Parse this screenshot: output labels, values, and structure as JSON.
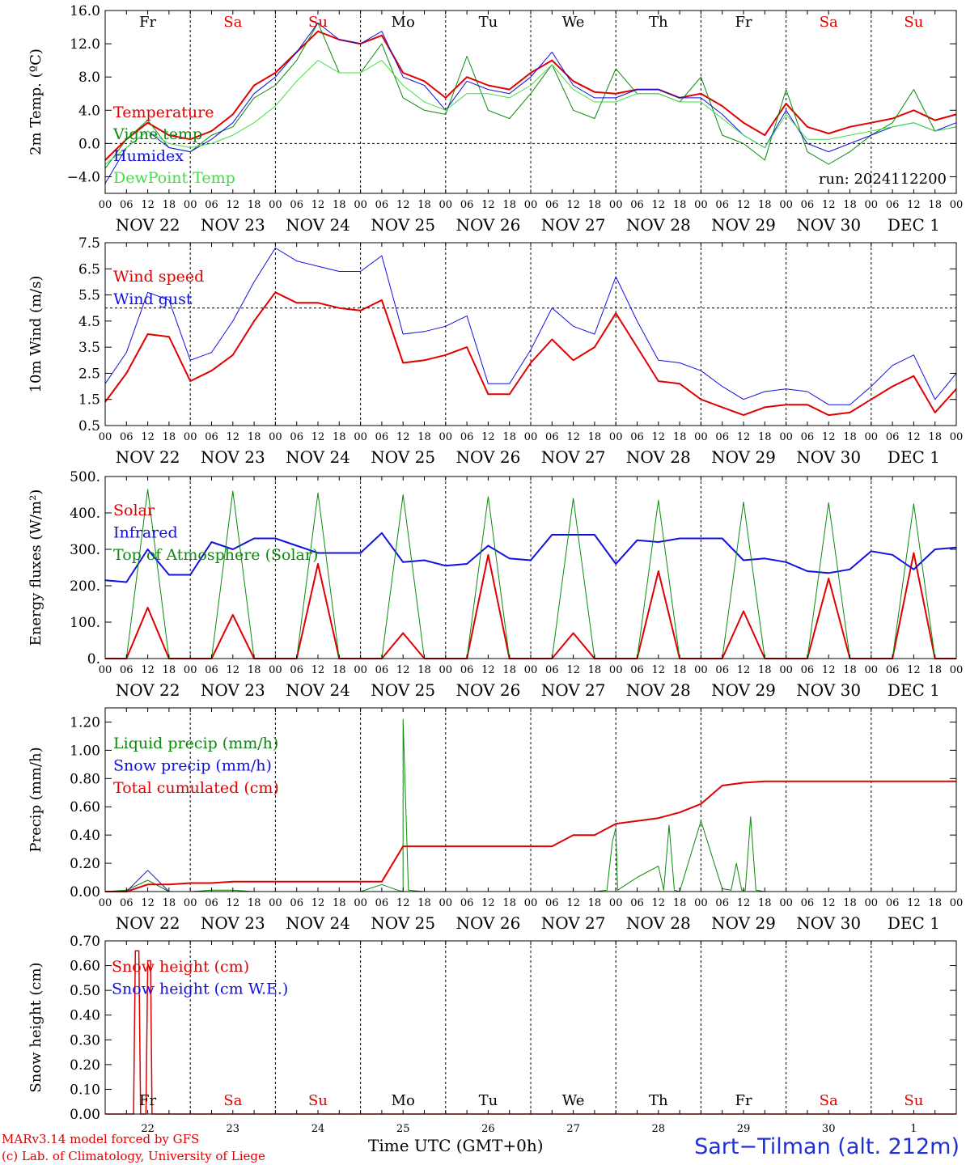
{
  "meta": {
    "run_label": "run: 2024112200"
  },
  "days": {
    "weekday_labels": [
      "Fr",
      "Sa",
      "Su",
      "Mo",
      "Tu",
      "We",
      "Th",
      "Fr",
      "Sa",
      "Su"
    ],
    "weekday_colors": [
      "#000000",
      "#e00000",
      "#e00000",
      "#000000",
      "#000000",
      "#000000",
      "#000000",
      "#000000",
      "#e00000",
      "#e00000"
    ],
    "date_labels": [
      "NOV 22",
      "NOV 23",
      "NOV 24",
      "NOV 25",
      "NOV 26",
      "NOV 27",
      "NOV 28",
      "NOV 29",
      "NOV 30",
      "DEC  1"
    ],
    "hour_ticks": [
      "00",
      "06",
      "12",
      "18"
    ],
    "last_hour_tick": "00",
    "snow_panel_day_numbers": [
      "22",
      "23",
      "24",
      "25",
      "26",
      "27",
      "28",
      "29",
      "30",
      "1"
    ]
  },
  "footer": {
    "line1": "MARv3.14 model forced by GFS",
    "line2": "(c) Lab. of Climatology, University of Liege",
    "time_axis": "Time UTC (GMT+0h)",
    "station": "Sart−Tilman (alt. 212m)"
  },
  "chart_data": [
    {
      "id": "temperature",
      "type": "line",
      "ylabel": "2m Temp. (ºC)",
      "ylim": [
        -6,
        16
      ],
      "yticks": [
        -4,
        0,
        4,
        8,
        12,
        16
      ],
      "ytick_labels": [
        "−4.0",
        "0.0",
        "4.0",
        "8.0",
        "12.0",
        "16.0"
      ],
      "reference_line": 0,
      "x_hours": [
        0,
        6,
        12,
        18,
        24,
        30,
        36,
        42,
        48,
        54,
        60,
        66,
        72,
        78,
        84,
        90,
        96,
        102,
        108,
        114,
        120,
        126,
        132,
        138,
        144,
        150,
        156,
        162,
        168,
        174,
        180,
        186,
        192,
        198,
        204,
        210,
        216,
        222,
        228,
        234,
        240
      ],
      "series": [
        {
          "name": "Temperature",
          "color": "#e00000",
          "width": 2,
          "values": [
            -2.0,
            0.5,
            2.5,
            1.0,
            0.5,
            1.5,
            3.5,
            7.0,
            8.5,
            11.0,
            13.5,
            12.5,
            12.0,
            13.0,
            8.5,
            7.5,
            5.5,
            8.0,
            7.0,
            6.5,
            8.5,
            10.0,
            7.5,
            6.2,
            6.0,
            6.5,
            6.5,
            5.5,
            6.0,
            4.5,
            2.5,
            1.0,
            4.8,
            2.0,
            1.2,
            2.0,
            2.5,
            3.0,
            4.0,
            2.8,
            3.5
          ]
        },
        {
          "name": "Vigne temp",
          "color": "#0a8a0a",
          "width": 1,
          "values": [
            -3.0,
            0.5,
            2.8,
            -0.5,
            -1.0,
            1.0,
            2.0,
            5.5,
            7.0,
            10.0,
            14.5,
            8.5,
            8.5,
            12.0,
            5.5,
            4.0,
            3.5,
            10.5,
            4.0,
            3.0,
            6.0,
            9.5,
            4.0,
            3.0,
            9.0,
            6.0,
            6.0,
            5.0,
            8.0,
            1.0,
            0.0,
            -2.0,
            6.5,
            -1.0,
            -2.5,
            -1.0,
            1.0,
            2.5,
            6.5,
            1.5,
            2.0
          ]
        },
        {
          "name": "Humidex",
          "color": "#1010e0",
          "width": 1,
          "values": [
            -4.8,
            -0.5,
            1.5,
            -0.5,
            -1.0,
            0.5,
            2.5,
            6.0,
            8.0,
            11.0,
            14.5,
            12.5,
            12.0,
            13.5,
            8.0,
            7.0,
            4.0,
            7.5,
            6.5,
            6.0,
            8.0,
            11.0,
            7.0,
            5.5,
            5.5,
            6.5,
            6.5,
            5.5,
            5.5,
            3.5,
            1.0,
            -0.5,
            4.0,
            0.0,
            -1.0,
            0.0,
            1.0,
            2.0,
            2.5,
            1.5,
            2.5
          ]
        },
        {
          "name": "DewPoint Temp",
          "color": "#40e040",
          "width": 1,
          "values": [
            -2.5,
            -0.5,
            1.5,
            0.0,
            -0.5,
            0.0,
            1.0,
            2.5,
            4.5,
            7.5,
            10.0,
            8.5,
            8.5,
            10.0,
            7.0,
            5.0,
            4.0,
            6.0,
            6.0,
            5.5,
            7.0,
            9.5,
            6.5,
            5.0,
            5.0,
            6.0,
            6.0,
            5.0,
            5.0,
            3.0,
            1.0,
            -0.5,
            3.5,
            0.5,
            0.5,
            1.0,
            1.5,
            2.0,
            2.5,
            1.5,
            2.0
          ]
        }
      ]
    },
    {
      "id": "wind",
      "type": "line",
      "ylabel": "10m Wind (m/s)",
      "ylim": [
        0.5,
        7.5
      ],
      "yticks": [
        0.5,
        1.5,
        2.5,
        3.5,
        4.5,
        5.5,
        6.5,
        7.5
      ],
      "ytick_labels": [
        "0.5",
        "1.5",
        "2.5",
        "3.5",
        "4.5",
        "5.5",
        "6.5",
        "7.5"
      ],
      "reference_line": 5,
      "x_hours": [
        0,
        6,
        12,
        18,
        24,
        30,
        36,
        42,
        48,
        54,
        60,
        66,
        72,
        78,
        84,
        90,
        96,
        102,
        108,
        114,
        120,
        126,
        132,
        138,
        144,
        150,
        156,
        162,
        168,
        174,
        180,
        186,
        192,
        198,
        204,
        210,
        216,
        222,
        228,
        234,
        240
      ],
      "series": [
        {
          "name": "Wind speed",
          "color": "#e00000",
          "width": 2,
          "values": [
            1.4,
            2.5,
            4.0,
            3.9,
            2.2,
            2.6,
            3.2,
            4.5,
            5.6,
            5.2,
            5.2,
            5.0,
            4.9,
            5.3,
            2.9,
            3.0,
            3.2,
            3.5,
            1.7,
            1.7,
            2.9,
            3.8,
            3.0,
            3.5,
            4.8,
            3.5,
            2.2,
            2.1,
            1.5,
            1.2,
            0.9,
            1.2,
            1.3,
            1.3,
            0.9,
            1.0,
            1.5,
            2.0,
            2.4,
            1.0,
            1.9
          ]
        },
        {
          "name": "Wind gust",
          "color": "#1010e0",
          "width": 1,
          "values": [
            2.1,
            3.3,
            5.6,
            5.3,
            3.0,
            3.3,
            4.5,
            6.0,
            7.3,
            6.8,
            6.6,
            6.4,
            6.4,
            7.0,
            4.0,
            4.1,
            4.3,
            4.7,
            2.1,
            2.1,
            3.4,
            5.0,
            4.3,
            4.0,
            6.2,
            4.5,
            3.0,
            2.9,
            2.6,
            2.0,
            1.5,
            1.8,
            1.9,
            1.8,
            1.3,
            1.3,
            2.0,
            2.8,
            3.2,
            1.5,
            2.5
          ]
        }
      ]
    },
    {
      "id": "energy",
      "type": "line",
      "ylabel": "Energy fluxes (W/m²)",
      "ylim": [
        0,
        500
      ],
      "yticks": [
        0,
        100,
        200,
        300,
        400,
        500
      ],
      "ytick_labels": [
        "0.",
        "100.",
        "200.",
        "300.",
        "400.",
        "500."
      ],
      "x_hours": [
        0,
        6,
        12,
        18,
        24,
        30,
        36,
        42,
        48,
        54,
        60,
        66,
        72,
        78,
        84,
        90,
        96,
        102,
        108,
        114,
        120,
        126,
        132,
        138,
        144,
        150,
        156,
        162,
        168,
        174,
        180,
        186,
        192,
        198,
        204,
        210,
        216,
        222,
        228,
        234,
        240
      ],
      "series": [
        {
          "name": "Solar",
          "color": "#e00000",
          "width": 2,
          "values": [
            0,
            0,
            140,
            0,
            0,
            0,
            120,
            0,
            0,
            0,
            260,
            0,
            0,
            0,
            70,
            0,
            0,
            0,
            285,
            0,
            0,
            0,
            70,
            0,
            0,
            0,
            240,
            0,
            0,
            0,
            130,
            0,
            0,
            0,
            220,
            0,
            0,
            0,
            290,
            0,
            0
          ]
        },
        {
          "name": "Infrared",
          "color": "#1010e0",
          "width": 2,
          "values": [
            215,
            210,
            300,
            230,
            230,
            320,
            300,
            330,
            330,
            310,
            290,
            290,
            290,
            345,
            265,
            270,
            255,
            260,
            310,
            275,
            270,
            340,
            340,
            340,
            260,
            325,
            320,
            330,
            330,
            330,
            270,
            275,
            265,
            240,
            235,
            245,
            295,
            285,
            245,
            300,
            305
          ]
        },
        {
          "name": "Top of Atmosphere (Solar)",
          "color": "#0a8a0a",
          "width": 1,
          "values": [
            0,
            0,
            465,
            0,
            0,
            0,
            460,
            0,
            0,
            0,
            455,
            0,
            0,
            0,
            450,
            0,
            0,
            0,
            445,
            0,
            0,
            0,
            440,
            0,
            0,
            0,
            435,
            0,
            0,
            0,
            430,
            0,
            0,
            0,
            428,
            0,
            0,
            0,
            425,
            0,
            0
          ]
        }
      ]
    },
    {
      "id": "precip",
      "type": "line",
      "ylabel": "Precip (mm/h)",
      "ylim": [
        0,
        1.3
      ],
      "yticks": [
        0,
        0.2,
        0.4,
        0.6,
        0.8,
        1.0,
        1.2
      ],
      "ytick_labels": [
        "0.00",
        "0.20",
        "0.40",
        "0.60",
        "0.80",
        "1.00",
        "1.20"
      ],
      "x_hours": [
        0,
        6,
        12,
        18,
        24,
        30,
        36,
        42,
        48,
        54,
        60,
        66,
        72,
        78,
        84,
        90,
        96,
        102,
        108,
        114,
        120,
        126,
        132,
        138,
        144,
        150,
        156,
        162,
        168,
        174,
        180,
        186,
        192,
        198,
        204,
        210,
        216,
        222,
        228,
        234,
        240
      ],
      "series": [
        {
          "name": "Liquid precip (mm/h)",
          "color": "#0a8a0a",
          "width": 1,
          "values": [
            0,
            0.01,
            0.08,
            0,
            0,
            0.01,
            0.01,
            0,
            0,
            0,
            0,
            0,
            0,
            0.05,
            0,
            0,
            0,
            0,
            0,
            0,
            0,
            0,
            0,
            0,
            0.45,
            0.1,
            0.18,
            0,
            0.5,
            0.02,
            0.01,
            0,
            0,
            0,
            0,
            0,
            0,
            0,
            0,
            0,
            0
          ]
        },
        {
          "name": "Snow precip (mm/h)",
          "color": "#1010e0",
          "width": 1,
          "values": [
            0,
            0,
            0.15,
            0,
            0,
            0,
            0,
            0,
            0,
            0,
            0,
            0,
            0,
            0,
            0,
            0,
            0,
            0,
            0,
            0,
            0,
            0,
            0,
            0,
            0,
            0,
            0,
            0,
            0,
            0,
            0,
            0,
            0,
            0,
            0,
            0,
            0,
            0,
            0,
            0,
            0
          ]
        },
        {
          "name": "Total cumulated (cm)",
          "color": "#e00000",
          "width": 2,
          "values": [
            0,
            0,
            0.05,
            0.05,
            0.06,
            0.06,
            0.07,
            0.07,
            0.07,
            0.07,
            0.07,
            0.07,
            0.07,
            0.07,
            0.32,
            0.32,
            0.32,
            0.32,
            0.32,
            0.32,
            0.32,
            0.32,
            0.4,
            0.4,
            0.48,
            0.5,
            0.52,
            0.56,
            0.62,
            0.75,
            0.77,
            0.78,
            0.78,
            0.78,
            0.78,
            0.78,
            0.78,
            0.78,
            0.78,
            0.78,
            0.78
          ]
        }
      ],
      "spikes": [
        {
          "series": "Liquid precip (mm/h)",
          "hour": 84,
          "value": 1.22
        },
        {
          "series": "Liquid precip (mm/h)",
          "hour": 143,
          "value": 0.35
        },
        {
          "series": "Liquid precip (mm/h)",
          "hour": 159,
          "value": 0.47
        },
        {
          "series": "Liquid precip (mm/h)",
          "hour": 178,
          "value": 0.2
        },
        {
          "series": "Liquid precip (mm/h)",
          "hour": 182,
          "value": 0.53
        }
      ]
    },
    {
      "id": "snow",
      "type": "line",
      "ylabel": "Snow height (cm)",
      "ylim": [
        0,
        0.7
      ],
      "yticks": [
        0,
        0.1,
        0.2,
        0.3,
        0.4,
        0.5,
        0.6,
        0.7
      ],
      "ytick_labels": [
        "0.00",
        "0.10",
        "0.20",
        "0.30",
        "0.40",
        "0.50",
        "0.60",
        "0.70"
      ],
      "series": [
        {
          "name": "Snow height (cm)",
          "color": "#e00000",
          "width": 1.5,
          "points": [
            [
              0,
              0
            ],
            [
              8,
              0
            ],
            [
              8.5,
              0.66
            ],
            [
              9.5,
              0.66
            ],
            [
              10,
              0
            ],
            [
              11.5,
              0
            ],
            [
              12,
              0.62
            ],
            [
              12.8,
              0.62
            ],
            [
              13.2,
              0
            ],
            [
              240,
              0
            ]
          ]
        },
        {
          "name": "Snow height (cm W.E.)",
          "color": "#1010e0",
          "width": 1,
          "points": [
            [
              0,
              0
            ],
            [
              240,
              0
            ]
          ]
        }
      ]
    }
  ]
}
